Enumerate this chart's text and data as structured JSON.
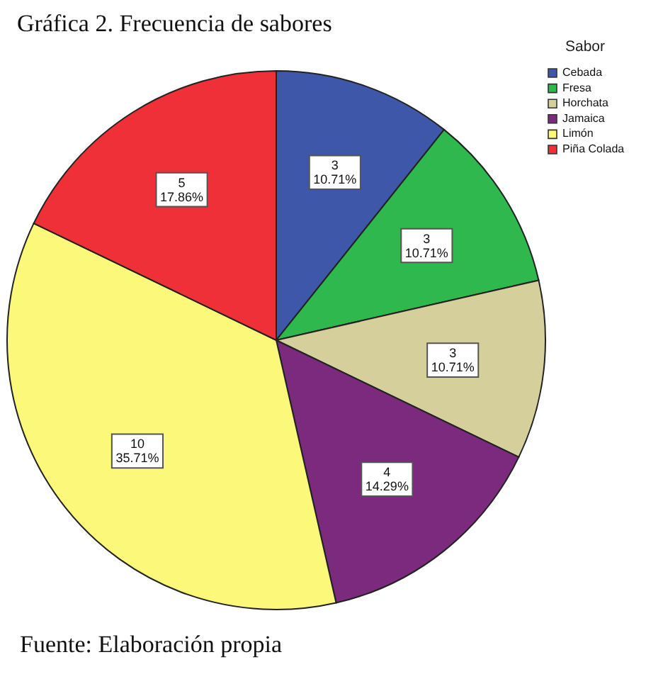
{
  "chart_data": {
    "type": "pie",
    "title": "Gráfica 2. Frecuencia de sabores",
    "legend_title": "Sabor",
    "legend": "top right",
    "categories": [
      "Cebada",
      "Fresa",
      "Horchata",
      "Jamaica",
      "Limón",
      "Piña Colada"
    ],
    "values": [
      3,
      3,
      3,
      4,
      10,
      5
    ],
    "colors": [
      "#3f57a8",
      "#2eb84d",
      "#d4cf9b",
      "#7b2a7d",
      "#fcf87a",
      "#ef3039"
    ],
    "value_labels": [
      "3\n10.71%",
      "3\n10.71%",
      "3\n10.71%",
      "4\n14.29%",
      "10\n35.71%",
      "5\n17.86%"
    ],
    "annotations": [
      "Fuente: Elaboración propia"
    ]
  }
}
